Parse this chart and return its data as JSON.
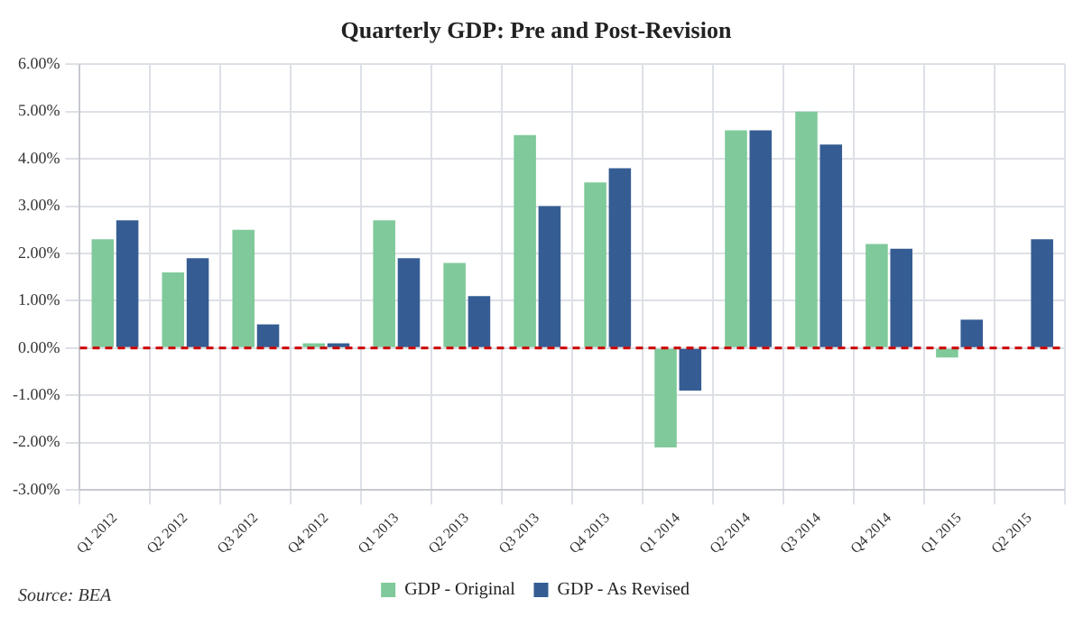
{
  "chart_data": {
    "type": "bar",
    "title": "Quarterly GDP: Pre and Post-Revision",
    "categories": [
      "Q1 2012",
      "Q2 2012",
      "Q3 2012",
      "Q4 2012",
      "Q1 2013",
      "Q2 2013",
      "Q3 2013",
      "Q4 2013",
      "Q1 2014",
      "Q2 2014",
      "Q3 2014",
      "Q4 2014",
      "Q1 2015",
      "Q2 2015"
    ],
    "series": [
      {
        "name": "GDP - Original",
        "color": "#7fc99a",
        "values": [
          2.3,
          1.6,
          2.5,
          0.1,
          2.7,
          1.8,
          4.5,
          3.5,
          -2.1,
          4.6,
          5.0,
          2.2,
          -0.2,
          null
        ]
      },
      {
        "name": "GDP - As Revised",
        "color": "#355d93",
        "values": [
          2.7,
          1.9,
          0.5,
          0.1,
          1.9,
          1.1,
          3.0,
          3.8,
          -0.9,
          4.6,
          4.3,
          2.1,
          0.6,
          2.3
        ]
      }
    ],
    "ylim": [
      -3,
      6
    ],
    "yticks": [
      {
        "value": -3,
        "label": "-3.00%"
      },
      {
        "value": -2,
        "label": "-2.00%"
      },
      {
        "value": -1,
        "label": "-1.00%"
      },
      {
        "value": 0,
        "label": "0.00%"
      },
      {
        "value": 1,
        "label": "1.00%"
      },
      {
        "value": 2,
        "label": "2.00%"
      },
      {
        "value": 3,
        "label": "3.00%"
      },
      {
        "value": 4,
        "label": "4.00%"
      },
      {
        "value": 5,
        "label": "5.00%"
      },
      {
        "value": 6,
        "label": "6.00%"
      }
    ],
    "ref_lines": [
      {
        "axis": "y",
        "value": 0,
        "color": "#cc0000",
        "line_style": "dashed"
      }
    ],
    "grid": true,
    "legend": "bottom",
    "annotations": [
      "Source: BEA"
    ]
  }
}
